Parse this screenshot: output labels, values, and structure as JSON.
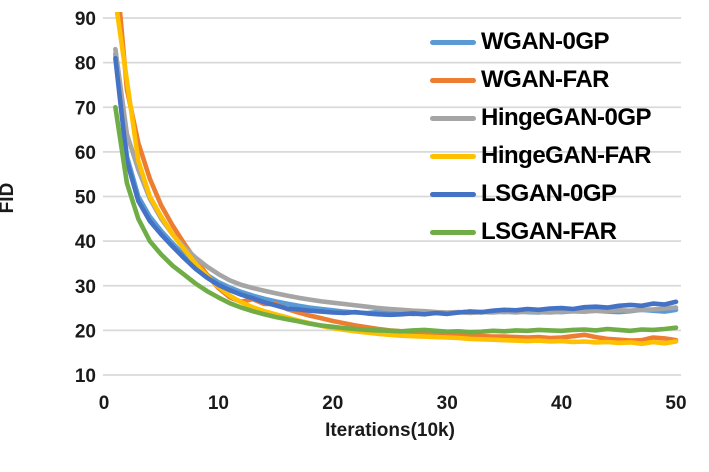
{
  "chart_data": {
    "type": "line",
    "title": "",
    "xlabel": "Iterations(10k)",
    "ylabel": "FID",
    "xlim": [
      0,
      50
    ],
    "ylim": [
      10,
      90
    ],
    "xticks": [
      0,
      10,
      20,
      30,
      40,
      50
    ],
    "yticks": [
      90,
      80,
      70,
      60,
      50,
      40,
      30,
      20,
      10
    ],
    "grid": "horizontal",
    "gridline_color": "#d9d9d9",
    "legend_position": "top-right-inside",
    "x": [
      1,
      2,
      3,
      4,
      5,
      6,
      7,
      8,
      9,
      10,
      11,
      12,
      13,
      14,
      15,
      16,
      17,
      18,
      19,
      20,
      21,
      22,
      23,
      24,
      25,
      26,
      27,
      28,
      29,
      30,
      31,
      32,
      33,
      34,
      35,
      36,
      37,
      38,
      39,
      40,
      41,
      42,
      43,
      44,
      45,
      46,
      47,
      48,
      49,
      50
    ],
    "series": [
      {
        "name": "WGAN-0GP",
        "color": "#5B9BD5",
        "values": [
          82,
          59,
          50,
          45.5,
          42.3,
          39.5,
          36.8,
          34.4,
          32.4,
          30.8,
          29.6,
          28.6,
          27.8,
          27.1,
          26.5,
          26.0,
          25.5,
          25.1,
          24.8,
          24.5,
          24.2,
          24.0,
          23.9,
          24.1,
          23.8,
          23.9,
          23.7,
          23.8,
          23.9,
          23.8,
          24.0,
          24.2,
          24.0,
          24.3,
          24.1,
          24.3,
          24.1,
          24.0,
          24.2,
          24.1,
          24.3,
          24.2,
          24.4,
          24.2,
          24.1,
          24.3,
          24.6,
          24.4,
          24.2,
          24.6
        ]
      },
      {
        "name": "WGAN-FAR",
        "color": "#ED7D31",
        "values": [
          103,
          74,
          62,
          54,
          48,
          43.5,
          39.5,
          35.8,
          32.5,
          29.5,
          27.4,
          26.4,
          27.0,
          25.9,
          25.9,
          24.8,
          24.0,
          23.3,
          22.7,
          22.1,
          21.6,
          21.1,
          20.7,
          20.3,
          20.0,
          19.8,
          19.6,
          19.4,
          19.2,
          19.0,
          18.9,
          18.8,
          18.7,
          18.6,
          18.6,
          18.5,
          18.4,
          18.5,
          18.3,
          18.4,
          18.7,
          19.0,
          18.5,
          18.1,
          17.9,
          17.7,
          17.8,
          18.4,
          18.2,
          17.8
        ]
      },
      {
        "name": "HingeGAN-0GP",
        "color": "#A5A5A5",
        "values": [
          83,
          64,
          56,
          49.5,
          45,
          41.5,
          38.7,
          36.3,
          34.3,
          32.6,
          31.2,
          30.2,
          29.5,
          28.9,
          28.3,
          27.8,
          27.3,
          26.9,
          26.5,
          26.2,
          25.9,
          25.6,
          25.3,
          25.0,
          24.8,
          24.6,
          24.4,
          24.3,
          24.1,
          24.0,
          24.1,
          23.9,
          24.1,
          24.0,
          24.2,
          24.0,
          24.2,
          24.1,
          24.0,
          24.2,
          24.3,
          24.2,
          24.4,
          24.3,
          24.5,
          24.4,
          24.6,
          24.7,
          24.9,
          25.1
        ]
      },
      {
        "name": "HingeGAN-FAR",
        "color": "#FFC000",
        "values": [
          94,
          76,
          58,
          50,
          45.5,
          41.5,
          38.2,
          35.0,
          32.2,
          29.8,
          27.8,
          26.3,
          25.2,
          24.3,
          23.6,
          22.9,
          22.2,
          21.6,
          21.0,
          20.5,
          20.1,
          19.8,
          19.5,
          19.2,
          19.0,
          18.8,
          18.7,
          18.6,
          18.5,
          18.4,
          18.3,
          18.1,
          18.0,
          17.9,
          17.8,
          17.7,
          17.6,
          17.7,
          17.5,
          17.6,
          17.4,
          17.5,
          17.3,
          17.4,
          17.2,
          17.3,
          17.0,
          17.4,
          17.1,
          17.5
        ]
      },
      {
        "name": "LSGAN-0GP",
        "color": "#4472C4",
        "values": [
          81,
          58,
          49,
          44.5,
          41.5,
          38.8,
          36.2,
          33.8,
          31.8,
          30.2,
          29.0,
          28.0,
          27.2,
          26.3,
          25.6,
          24.9,
          24.7,
          24.4,
          24.2,
          24.0,
          23.9,
          24.1,
          23.8,
          23.6,
          23.5,
          23.6,
          23.8,
          23.6,
          23.9,
          23.7,
          24.0,
          24.2,
          24.1,
          24.4,
          24.6,
          24.5,
          24.8,
          24.6,
          24.9,
          25.0,
          24.8,
          25.2,
          25.3,
          25.1,
          25.5,
          25.7,
          25.5,
          26.0,
          25.8,
          26.4
        ]
      },
      {
        "name": "LSGAN-FAR",
        "color": "#70AD47",
        "values": [
          70,
          53,
          45,
          40,
          37,
          34.5,
          32.5,
          30.5,
          28.8,
          27.4,
          26.1,
          25.1,
          24.3,
          23.6,
          23.0,
          22.5,
          22.0,
          21.5,
          21.1,
          20.8,
          20.5,
          20.3,
          20.1,
          20.0,
          19.9,
          19.8,
          20.0,
          20.1,
          19.9,
          19.7,
          19.8,
          19.6,
          19.7,
          19.9,
          19.8,
          20.0,
          19.9,
          20.1,
          20.0,
          19.9,
          20.1,
          20.2,
          20.0,
          20.3,
          20.1,
          19.9,
          20.2,
          20.1,
          20.3,
          20.6
        ]
      }
    ]
  }
}
